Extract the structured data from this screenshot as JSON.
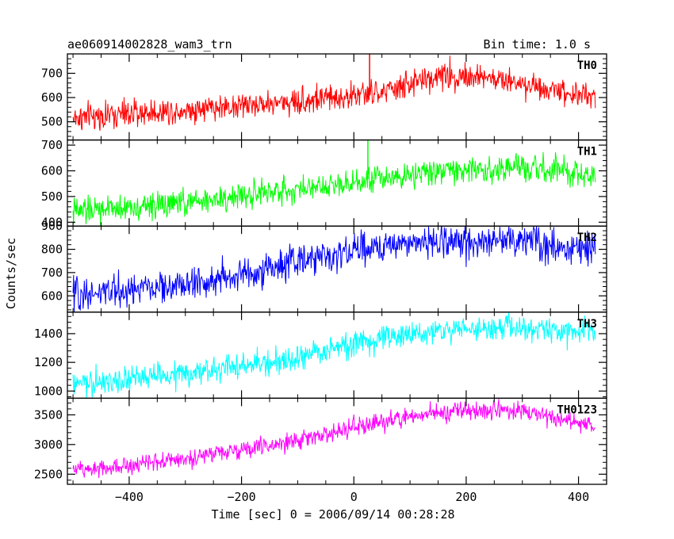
{
  "header": {
    "title": "ae060914002828_wam3_trn",
    "bin_time": "Bin time: 1.0 s"
  },
  "chart_data": {
    "type": "line",
    "xlabel": "Time [sec] 0 = 2006/09/14 00:28:28",
    "ylabel": "Counts/sec",
    "xlim": [
      -510,
      450
    ],
    "x_ticks": [
      -400,
      -200,
      0,
      200,
      400
    ],
    "x_tick_labels": [
      "−400",
      "−200",
      "0",
      "200",
      "400"
    ],
    "x_data_range": [
      -500,
      430
    ],
    "panels": [
      {
        "name": "TH0",
        "color": "#ff0000",
        "ylim": [
          425,
          780
        ],
        "yticks": [
          500,
          600,
          700
        ],
        "ytick_labels": [
          "500",
          "600",
          "700"
        ],
        "trend": [
          [
            -500,
            515
          ],
          [
            -300,
            550
          ],
          [
            -100,
            585
          ],
          [
            50,
            620
          ],
          [
            150,
            690
          ],
          [
            200,
            690
          ],
          [
            300,
            660
          ],
          [
            430,
            600
          ]
        ],
        "noise": 28,
        "spikes": [
          [
            28,
            790
          ]
        ]
      },
      {
        "name": "TH1",
        "color": "#00ff00",
        "ylim": [
          385,
          720
        ],
        "yticks": [
          400,
          500,
          600,
          700
        ],
        "ytick_labels": [
          "400",
          "500",
          "600",
          "700"
        ],
        "trend": [
          [
            -500,
            440
          ],
          [
            -300,
            475
          ],
          [
            -100,
            530
          ],
          [
            50,
            575
          ],
          [
            150,
            600
          ],
          [
            300,
            610
          ],
          [
            430,
            580
          ]
        ],
        "noise": 26,
        "spikes": [
          [
            25,
            720
          ]
        ]
      },
      {
        "name": "TH2",
        "color": "#0000ff",
        "ylim": [
          530,
          900
        ],
        "yticks": [
          600,
          700,
          800,
          900
        ],
        "ytick_labels": [
          "600",
          "700",
          "800",
          "900"
        ],
        "trend": [
          [
            -500,
            605
          ],
          [
            -300,
            645
          ],
          [
            -200,
            690
          ],
          [
            -100,
            745
          ],
          [
            0,
            795
          ],
          [
            100,
            830
          ],
          [
            300,
            840
          ],
          [
            430,
            790
          ]
        ],
        "noise": 35,
        "spikes": []
      },
      {
        "name": "TH3",
        "color": "#00ffff",
        "ylim": [
          950,
          1550
        ],
        "yticks": [
          1000,
          1200,
          1400
        ],
        "ytick_labels": [
          "1000",
          "1200",
          "1400"
        ],
        "trend": [
          [
            -500,
            1040
          ],
          [
            -300,
            1120
          ],
          [
            -100,
            1225
          ],
          [
            0,
            1330
          ],
          [
            150,
            1420
          ],
          [
            250,
            1440
          ],
          [
            430,
            1410
          ]
        ],
        "noise": 45,
        "spikes": []
      },
      {
        "name": "TH0123",
        "color": "#ff00ff",
        "ylim": [
          2330,
          3780
        ],
        "yticks": [
          2500,
          3000,
          3500
        ],
        "ytick_labels": [
          "2500",
          "3000",
          "3500"
        ],
        "trend": [
          [
            -500,
            2570
          ],
          [
            -300,
            2760
          ],
          [
            -100,
            3060
          ],
          [
            0,
            3280
          ],
          [
            100,
            3480
          ],
          [
            200,
            3580
          ],
          [
            300,
            3560
          ],
          [
            430,
            3320
          ]
        ],
        "noise": 75,
        "spikes": []
      }
    ],
    "grid": false,
    "legend": "none"
  }
}
